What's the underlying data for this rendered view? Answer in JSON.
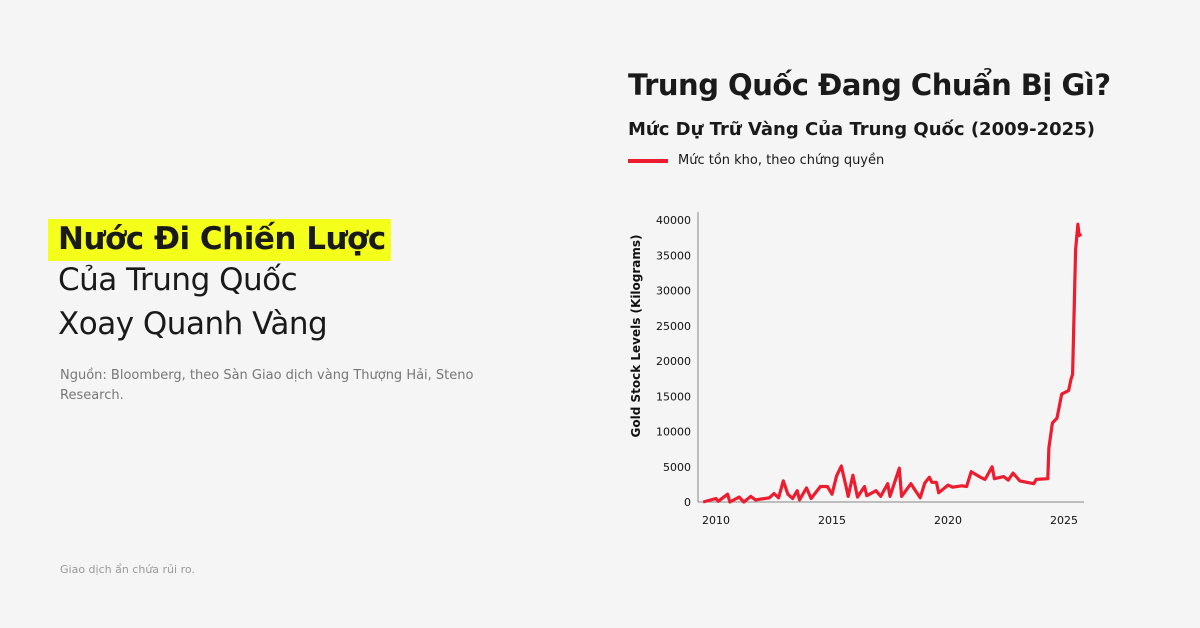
{
  "left": {
    "headline_highlight": "Nước Đi Chiến Lược",
    "headline_line2": "Của Trung Quốc",
    "headline_line3": "Xoay Quanh Vàng",
    "source": "Nguồn: Bloomberg, theo Sàn Giao dịch vàng Thượng Hải, Steno Research.",
    "disclaimer": "Giao dịch ẩn chứa rủi ro."
  },
  "colors": {
    "highlight": "#f4ff1a",
    "series": "#ed1c2e"
  },
  "chart_data": {
    "type": "line",
    "title": "Trung Quốc Đang Chuẩn Bị Gì?",
    "subtitle": "Mức Dự Trữ Vàng Của Trung Quốc (2009-2025)",
    "xlabel": "",
    "ylabel": "Gold Stock Levels (Kilograms)",
    "xlim": [
      2009.3,
      2025.9
    ],
    "ylim": [
      0,
      40000
    ],
    "xticks": [
      "2010",
      "2015",
      "2020",
      "2025"
    ],
    "yticks": [
      "0",
      "5000",
      "10000",
      "15000",
      "20000",
      "25000",
      "30000",
      "35000",
      "40000"
    ],
    "grid": false,
    "legend_position": "top-left",
    "series": [
      {
        "name": "Mức tồn kho, theo chứng quyền",
        "x": [
          2009.45,
          2010.0,
          2010.1,
          2010.5,
          2010.6,
          2011.0,
          2011.2,
          2011.5,
          2011.7,
          2012.3,
          2012.5,
          2012.7,
          2012.9,
          2013.1,
          2013.3,
          2013.5,
          2013.6,
          2013.9,
          2014.1,
          2014.5,
          2014.8,
          2015.0,
          2015.2,
          2015.4,
          2015.6,
          2015.7,
          2015.9,
          2016.1,
          2016.4,
          2016.5,
          2016.9,
          2017.1,
          2017.4,
          2017.5,
          2017.9,
          2018.0,
          2018.4,
          2018.6,
          2018.8,
          2019.0,
          2019.2,
          2019.3,
          2019.5,
          2019.6,
          2020.0,
          2020.2,
          2020.6,
          2020.8,
          2021.0,
          2021.4,
          2021.6,
          2021.9,
          2022.0,
          2022.4,
          2022.6,
          2022.8,
          2023.1,
          2023.7,
          2023.8,
          2024.3,
          2024.35,
          2024.5,
          2024.7,
          2024.9,
          2025.2,
          2025.3,
          2025.37,
          2025.5,
          2025.6,
          2025.65,
          2025.75
        ],
        "y": [
          0,
          500,
          100,
          1100,
          0,
          700,
          0,
          800,
          300,
          600,
          1200,
          600,
          3000,
          1100,
          500,
          1600,
          300,
          2000,
          500,
          2200,
          2200,
          1100,
          3700,
          5100,
          2300,
          800,
          3800,
          700,
          2200,
          900,
          1600,
          800,
          2600,
          800,
          4800,
          800,
          2600,
          1600,
          600,
          2700,
          3500,
          2800,
          2800,
          1300,
          2400,
          2100,
          2300,
          2200,
          4300,
          3500,
          3200,
          5000,
          3300,
          3600,
          3100,
          4100,
          3000,
          2600,
          3200,
          3300,
          7700,
          11200,
          11900,
          15300,
          15800,
          17400,
          18100,
          35800,
          39400,
          37800,
          38000
        ]
      }
    ]
  }
}
